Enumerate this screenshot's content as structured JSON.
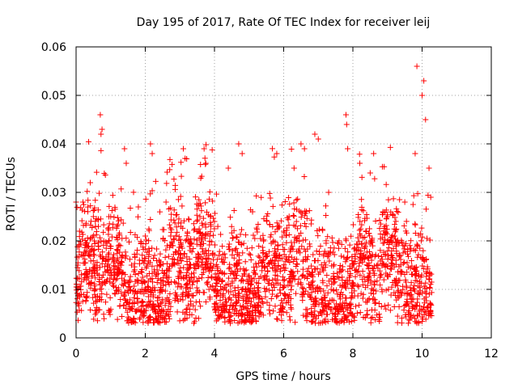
{
  "chart_data": {
    "type": "scatter",
    "title": "Day 195 of 2017, Rate Of TEC Index for receiver leij",
    "xlabel": "GPS time / hours",
    "ylabel": "ROTI / TECUs",
    "xlim": [
      0,
      12
    ],
    "ylim": [
      0,
      0.06
    ],
    "xticks": [
      0,
      2,
      4,
      6,
      8,
      10,
      12
    ],
    "xtick_labels": [
      "0",
      "2",
      "4",
      "6",
      "8",
      "10",
      "12"
    ],
    "yticks": [
      0,
      0.01,
      0.02,
      0.03,
      0.04,
      0.05,
      0.06
    ],
    "ytick_labels": [
      "0",
      "0.01",
      "0.02",
      "0.03",
      "0.04",
      "0.05",
      "0.06"
    ],
    "grid": true,
    "marker": "plus",
    "color": "#ff0000",
    "series": [
      {
        "name": "ROTI",
        "description_points": [
          [
            0.0,
            0.028
          ],
          [
            0.05,
            0.015
          ],
          [
            0.1,
            0.022
          ],
          [
            0.15,
            0.009
          ],
          [
            0.2,
            0.028
          ],
          [
            0.3,
            0.012
          ],
          [
            0.4,
            0.018
          ],
          [
            0.5,
            0.025
          ],
          [
            0.6,
            0.014
          ],
          [
            0.7,
            0.046
          ],
          [
            0.72,
            0.042
          ],
          [
            0.75,
            0.043
          ],
          [
            0.8,
            0.02
          ],
          [
            0.9,
            0.012
          ],
          [
            1.0,
            0.025
          ],
          [
            1.2,
            0.018
          ],
          [
            1.4,
            0.039
          ],
          [
            1.45,
            0.036
          ],
          [
            1.6,
            0.015
          ],
          [
            1.8,
            0.027
          ],
          [
            2.0,
            0.021
          ],
          [
            2.15,
            0.04
          ],
          [
            2.2,
            0.038
          ],
          [
            2.4,
            0.016
          ],
          [
            2.6,
            0.028
          ],
          [
            2.8,
            0.019
          ],
          [
            3.1,
            0.039
          ],
          [
            3.15,
            0.037
          ],
          [
            3.4,
            0.015
          ],
          [
            3.7,
            0.039
          ],
          [
            3.75,
            0.036
          ],
          [
            4.0,
            0.024
          ],
          [
            4.4,
            0.035
          ],
          [
            4.7,
            0.04
          ],
          [
            4.8,
            0.038
          ],
          [
            5.1,
            0.026
          ],
          [
            5.4,
            0.018
          ],
          [
            5.8,
            0.038
          ],
          [
            6.0,
            0.022
          ],
          [
            6.3,
            0.035
          ],
          [
            6.5,
            0.04
          ],
          [
            6.6,
            0.039
          ],
          [
            6.9,
            0.042
          ],
          [
            7.0,
            0.041
          ],
          [
            7.3,
            0.03
          ],
          [
            7.6,
            0.02
          ],
          [
            7.8,
            0.046
          ],
          [
            7.82,
            0.044
          ],
          [
            7.85,
            0.039
          ],
          [
            8.2,
            0.036
          ],
          [
            8.5,
            0.034
          ],
          [
            8.6,
            0.038
          ],
          [
            9.0,
            0.025
          ],
          [
            9.5,
            0.028
          ],
          [
            9.8,
            0.038
          ],
          [
            9.85,
            0.056
          ],
          [
            10.0,
            0.05
          ],
          [
            10.05,
            0.053
          ],
          [
            10.1,
            0.045
          ],
          [
            10.2,
            0.035
          ],
          [
            10.25,
            0.029
          ]
        ]
      }
    ]
  }
}
